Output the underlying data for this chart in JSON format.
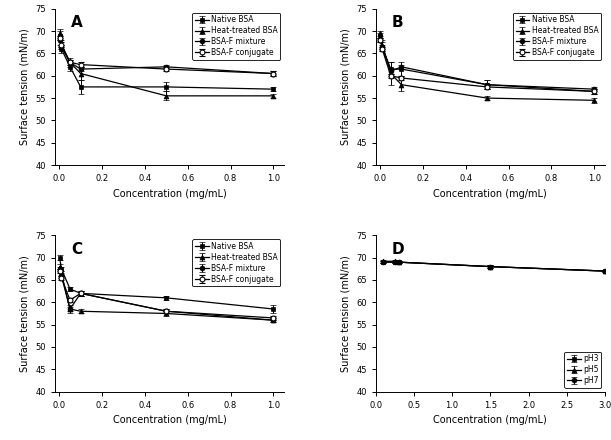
{
  "x_conc": [
    0.002,
    0.01,
    0.05,
    0.1,
    0.5,
    1.0
  ],
  "panel_A": {
    "label": "A",
    "native_bsa": [
      69.0,
      66.0,
      62.0,
      57.5,
      57.5,
      57.0
    ],
    "heat_bsa": [
      69.5,
      67.0,
      63.0,
      60.5,
      55.5,
      55.5
    ],
    "bsa_f_mix": [
      68.0,
      66.5,
      63.0,
      61.5,
      62.0,
      60.5
    ],
    "bsa_f_conj": [
      68.5,
      67.0,
      63.0,
      62.5,
      61.5,
      60.5
    ],
    "native_err": [
      1.0,
      1.0,
      1.0,
      1.5,
      1.0,
      0.5
    ],
    "heat_err": [
      1.0,
      1.0,
      1.0,
      1.5,
      1.0,
      0.5
    ],
    "mix_err": [
      1.0,
      0.5,
      0.5,
      0.5,
      0.5,
      0.5
    ],
    "conj_err": [
      0.5,
      0.5,
      0.5,
      0.5,
      0.5,
      0.5
    ]
  },
  "panel_B": {
    "label": "B",
    "native_bsa": [
      69.0,
      66.5,
      61.5,
      61.5,
      58.0,
      56.5
    ],
    "heat_bsa": [
      69.5,
      67.0,
      60.5,
      58.0,
      55.0,
      54.5
    ],
    "bsa_f_mix": [
      68.0,
      66.5,
      61.0,
      62.0,
      58.0,
      57.0
    ],
    "bsa_f_conj": [
      68.0,
      66.0,
      60.0,
      59.5,
      57.5,
      56.5
    ],
    "native_err": [
      0.5,
      1.0,
      1.5,
      1.5,
      1.0,
      0.5
    ],
    "heat_err": [
      0.5,
      1.0,
      2.5,
      1.5,
      0.5,
      0.5
    ],
    "mix_err": [
      0.5,
      0.5,
      0.5,
      0.5,
      1.0,
      0.5
    ],
    "conj_err": [
      0.5,
      0.5,
      0.5,
      0.5,
      0.5,
      0.5
    ]
  },
  "panel_C": {
    "label": "C",
    "native_bsa": [
      70.0,
      67.5,
      63.0,
      62.0,
      61.0,
      58.5
    ],
    "heat_bsa": [
      68.0,
      66.5,
      58.5,
      58.0,
      57.5,
      56.0
    ],
    "bsa_f_mix": [
      67.5,
      66.0,
      58.5,
      62.0,
      58.0,
      56.0
    ],
    "bsa_f_conj": [
      67.0,
      65.5,
      60.5,
      62.0,
      58.0,
      56.5
    ],
    "native_err": [
      0.5,
      0.5,
      0.5,
      0.5,
      0.5,
      1.0
    ],
    "heat_err": [
      0.5,
      0.5,
      1.0,
      0.5,
      0.5,
      0.5
    ],
    "mix_err": [
      0.5,
      0.5,
      0.5,
      0.5,
      0.5,
      0.5
    ],
    "conj_err": [
      0.5,
      0.5,
      0.5,
      0.5,
      0.5,
      0.5
    ]
  },
  "panel_D": {
    "label": "D",
    "x_conc": [
      0.1,
      0.25,
      0.3,
      1.5,
      3.0
    ],
    "ph3": [
      69.0,
      69.0,
      69.0,
      68.0,
      67.0
    ],
    "ph5": [
      69.2,
      69.2,
      69.0,
      68.0,
      67.0
    ],
    "ph7": [
      69.0,
      69.0,
      69.0,
      68.0,
      67.0
    ],
    "ph3_err": [
      0.3,
      0.3,
      0.3,
      0.3,
      0.3
    ],
    "ph5_err": [
      0.3,
      0.3,
      0.3,
      0.3,
      0.3
    ],
    "ph7_err": [
      0.3,
      0.3,
      0.3,
      0.3,
      0.3
    ]
  },
  "legend_labels": [
    "Native BSA",
    "Heat-treated BSA",
    "BSA-F mixture",
    "BSA-F conjugate"
  ],
  "legend_labels_D": [
    "pH3",
    "pH5",
    "pH7"
  ],
  "ylabel": "Surface tension (mN/m)",
  "xlabel": "Concentration (mg/mL)",
  "xlim_ABC": [
    -0.02,
    1.05
  ],
  "ylim_ABC": [
    40,
    75
  ],
  "xlim_D": [
    0.0,
    3.0
  ],
  "ylim_D": [
    40,
    75
  ],
  "yticks": [
    40,
    45,
    50,
    55,
    60,
    65,
    70,
    75
  ],
  "xticks_ABC": [
    0.0,
    0.2,
    0.4,
    0.6,
    0.8,
    1.0
  ],
  "xticks_D": [
    0.0,
    0.5,
    1.0,
    1.5,
    2.0,
    2.5,
    3.0
  ],
  "line_color": "black",
  "markersize": 3.5,
  "linewidth": 0.9,
  "capsize": 2,
  "elinewidth": 0.7,
  "fontsize_label": 7,
  "fontsize_tick": 6,
  "fontsize_legend": 5.5,
  "fontsize_panel": 11
}
